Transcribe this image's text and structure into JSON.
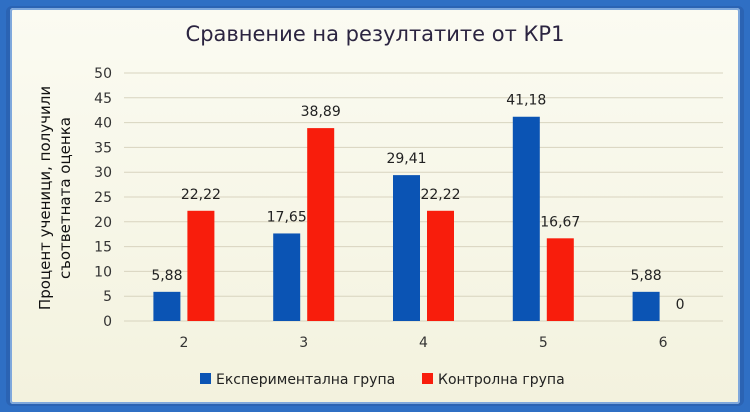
{
  "chart_data": {
    "type": "bar",
    "title": "Сравнение на резултатите от КР1",
    "ylabel_lines": [
      "Процент ученици, получили",
      "съответната оценка"
    ],
    "xlabel": "",
    "categories": [
      "2",
      "3",
      "4",
      "5",
      "6"
    ],
    "series": [
      {
        "name": "Експериментална група",
        "values": [
          5.88,
          17.65,
          29.41,
          41.18,
          5.88
        ],
        "labels": [
          "5,88",
          "17,65",
          "29,41",
          "41,18",
          "5,88"
        ],
        "color": "#0b54b4"
      },
      {
        "name": "Контролна група",
        "values": [
          22.22,
          38.89,
          22.22,
          16.67,
          0
        ],
        "labels": [
          "22,22",
          "38,89",
          "22,22",
          "16,67",
          "0"
        ],
        "color": "#f81d0c"
      }
    ],
    "ylim": [
      0,
      50
    ],
    "yticks": [
      "0",
      "5",
      "10",
      "15",
      "20",
      "25",
      "30",
      "35",
      "40",
      "45",
      "50"
    ],
    "grid": true,
    "legend_position": "bottom"
  }
}
